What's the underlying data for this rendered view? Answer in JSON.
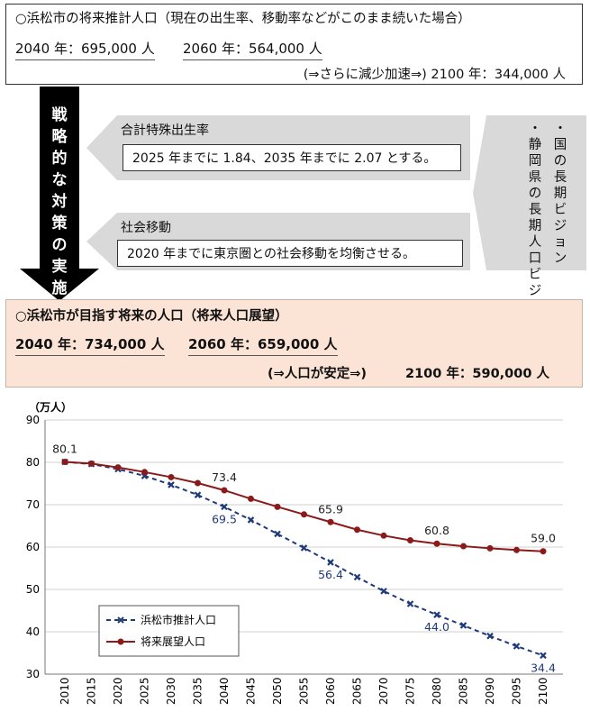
{
  "current": {
    "title": "○浜松市の将来推計人口（現在の出生率、移動率などがこのまま続いた場合）",
    "pop2040": "2040 年：695,000 人",
    "pop2060": "2060 年：564,000 人",
    "pop2100": "(⇒さらに減少加速⇒) 2100 年：344,000 人"
  },
  "strategy": {
    "label": "戦略的な対策の実施",
    "birth_label": "合計特殊出生率",
    "birth_text": "2025 年までに 1.84、2035 年までに 2.07 とする。",
    "migration_label": "社会移動",
    "migration_text": "2020 年までに東京圏との社会移動を均衡させる。",
    "vision_national": "・国の長期ビジョン",
    "vision_pref": "・静岡県の長期人口ビジョン"
  },
  "target": {
    "title": "○浜松市が目指す将来の人口（将来人口展望）",
    "pop2040": "2040 年：734,000 人",
    "pop2060": "2060 年：659,000 人",
    "stable": "(⇒人口が安定⇒)",
    "pop2100": "2100 年：590,000 人"
  },
  "colors": {
    "estimate": "#1f3a7a",
    "target": "#8b1a1a",
    "arrow": "#000000",
    "panel": "#d9d9d9",
    "highlight": "#fbe3d6"
  },
  "chart_data": {
    "type": "line",
    "unit_label": "（万人）",
    "x": [
      2010,
      2015,
      2020,
      2025,
      2030,
      2035,
      2040,
      2045,
      2050,
      2055,
      2060,
      2065,
      2070,
      2075,
      2080,
      2085,
      2090,
      2095,
      2100
    ],
    "ylim": [
      30,
      90
    ],
    "yticks": [
      30,
      40,
      50,
      60,
      70,
      80,
      90
    ],
    "series": [
      {
        "name": "浜松市推計人口",
        "style": "dashed",
        "values": [
          80.1,
          79.6,
          78.4,
          76.8,
          74.7,
          72.3,
          69.5,
          66.4,
          63.1,
          59.8,
          56.4,
          52.9,
          49.6,
          46.6,
          44.0,
          41.5,
          39.0,
          36.6,
          34.4
        ],
        "labels": [
          [
            2040,
            "69.5"
          ],
          [
            2060,
            "56.4"
          ],
          [
            2080,
            "44.0"
          ],
          [
            2100,
            "34.4"
          ]
        ]
      },
      {
        "name": "将来展望人口",
        "style": "solid",
        "values": [
          80.1,
          79.7,
          78.8,
          77.7,
          76.5,
          75.1,
          73.4,
          71.4,
          69.5,
          67.7,
          65.9,
          64.1,
          62.7,
          61.6,
          60.8,
          60.2,
          59.7,
          59.3,
          59.0
        ],
        "labels": [
          [
            2010,
            "80.1"
          ],
          [
            2040,
            "73.4"
          ],
          [
            2060,
            "65.9"
          ],
          [
            2080,
            "60.8"
          ],
          [
            2100,
            "59.0"
          ]
        ]
      }
    ]
  }
}
